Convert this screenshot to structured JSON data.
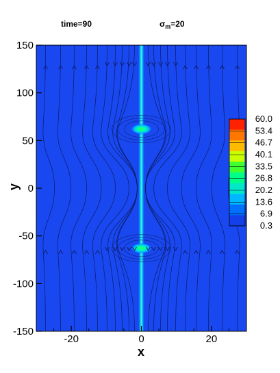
{
  "header": {
    "time_label": "time=90",
    "sigma_symbol": "σ",
    "sigma_sub": "m",
    "sigma_value": "=20"
  },
  "chart_data": {
    "type": "heatmap",
    "title": "",
    "xlabel": "x",
    "ylabel": "y",
    "xlim": [
      -30,
      30
    ],
    "ylim": [
      -150,
      150
    ],
    "xticks": [
      -20,
      0,
      20
    ],
    "xtick_labels": [
      "-20",
      "0",
      "20"
    ],
    "yticks": [
      150,
      100,
      50,
      0,
      -50,
      -100,
      -150
    ],
    "ytick_labels": [
      "150",
      "100",
      "50",
      "0",
      "-50",
      "-100",
      "-150"
    ],
    "grid": false,
    "legend": "colorbar right",
    "colorbar": {
      "levels": [
        "60.0",
        "53.4",
        "46.7",
        "40.1",
        "33.5",
        "26.8",
        "20.2",
        "13.6",
        "6.9",
        "0.3"
      ],
      "colors": [
        "#ff2200",
        "#ff7700",
        "#ffbb00",
        "#c8ff00",
        "#40ff30",
        "#00ff88",
        "#00e8c8",
        "#00b8ff",
        "#0070ff",
        "#1340e8"
      ]
    },
    "features": [
      {
        "name": "vertical-filament",
        "x": 0,
        "y_range": [
          -150,
          150
        ]
      },
      {
        "name": "upper-spot",
        "x": 0,
        "y": 62
      },
      {
        "name": "lower-spot",
        "x": 0,
        "y": -63
      }
    ],
    "streamline_arrows": "arrowheads on streamlines"
  }
}
